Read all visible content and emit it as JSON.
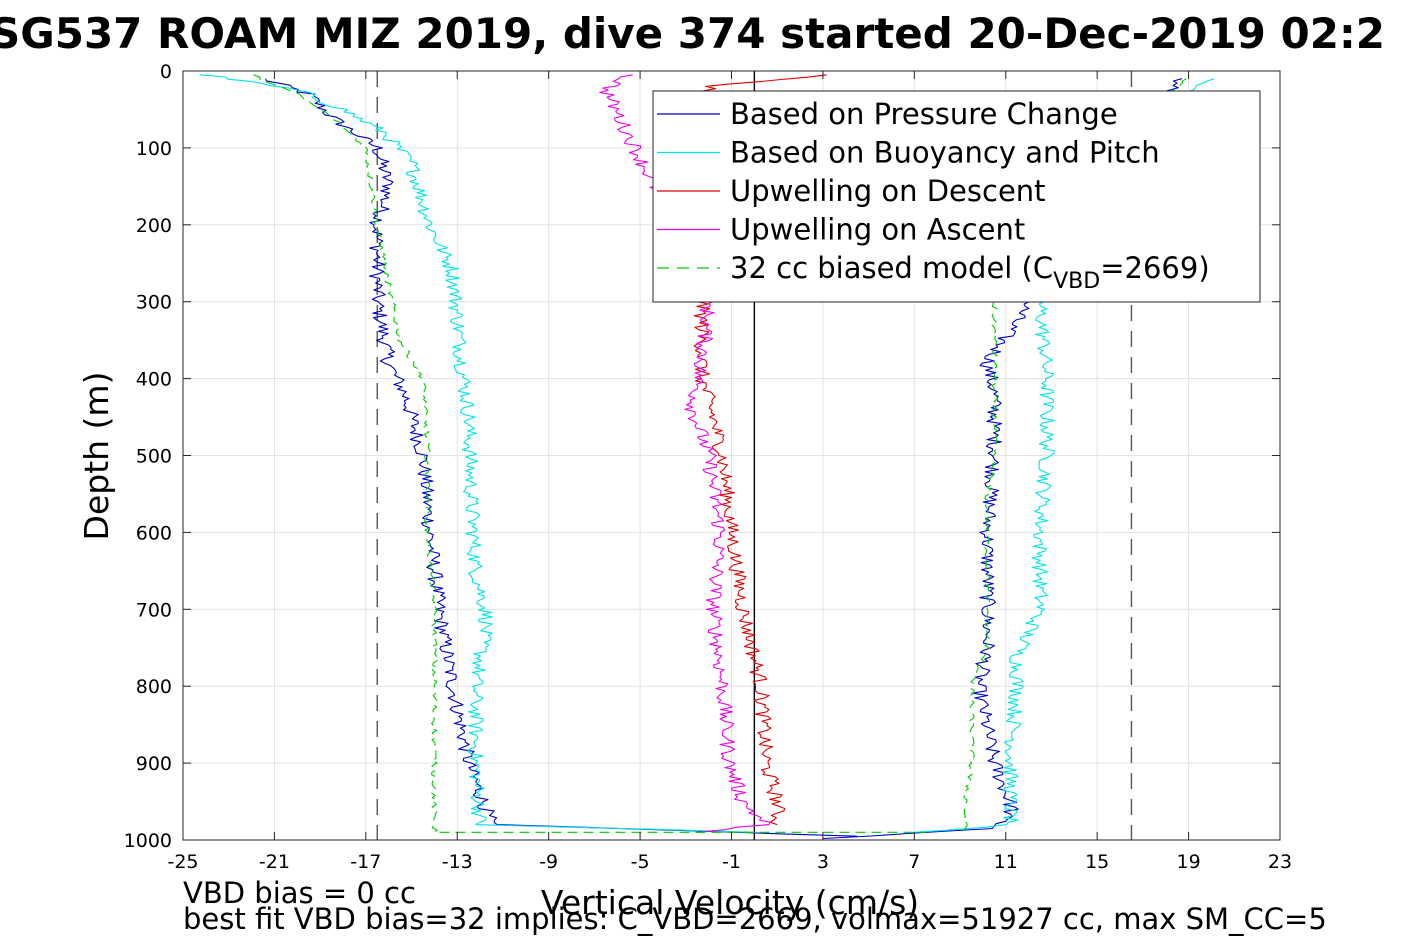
{
  "chart_data": {
    "type": "line",
    "title": "SG537 ROAM MIZ 2019, dive 374 started 20-Dec-2019 02:2",
    "xlabel": "Vertical Velocity (cm/s)",
    "ylabel": "Depth (m)",
    "xlim": [
      -25,
      23
    ],
    "ylim": [
      1000,
      0
    ],
    "y_reversed": true,
    "grid": true,
    "x_ticks": [
      -25,
      -21,
      -17,
      -13,
      -9,
      -5,
      -1,
      3,
      7,
      11,
      15,
      19,
      23
    ],
    "y_ticks": [
      0,
      100,
      200,
      300,
      400,
      500,
      600,
      700,
      800,
      900,
      1000
    ],
    "legend_position": "top-right",
    "reference_lines": [
      {
        "x": -16.5,
        "style": "dashed",
        "color": "#555555"
      },
      {
        "x": 16.5,
        "style": "dashed",
        "color": "#555555"
      },
      {
        "x": 0,
        "style": "solid",
        "color": "#000000"
      }
    ],
    "series": [
      {
        "name": "Based on Pressure Change",
        "color": "#0000cc",
        "style": "solid",
        "descent": [
          [
            -21.5,
            10
          ],
          [
            -19.5,
            30
          ],
          [
            -18.5,
            60
          ],
          [
            -16.5,
            100
          ],
          [
            -16,
            150
          ],
          [
            -16.5,
            200
          ],
          [
            -16.5,
            300
          ],
          [
            -16,
            380
          ],
          [
            -15.3,
            420
          ],
          [
            -14.5,
            500
          ],
          [
            -14.2,
            600
          ],
          [
            -13.8,
            700
          ],
          [
            -13.2,
            800
          ],
          [
            -12.5,
            900
          ],
          [
            -11.5,
            980
          ],
          [
            4.5,
            995
          ]
        ],
        "ascent": [
          [
            18.5,
            10
          ],
          [
            17.5,
            60
          ],
          [
            12,
            300
          ],
          [
            10.2,
            380
          ],
          [
            10.5,
            420
          ],
          [
            10.5,
            500
          ],
          [
            10.2,
            600
          ],
          [
            10.2,
            700
          ],
          [
            10.2,
            750
          ],
          [
            9.8,
            800
          ],
          [
            10.5,
            900
          ],
          [
            11.3,
            960
          ],
          [
            10.5,
            985
          ],
          [
            3,
            998
          ]
        ]
      },
      {
        "name": "Based on Buoyancy and Pitch",
        "color": "#00e5e5",
        "style": "solid",
        "descent": [
          [
            -24,
            5
          ],
          [
            -20,
            25
          ],
          [
            -18,
            50
          ],
          [
            -16.2,
            80
          ],
          [
            -15,
            120
          ],
          [
            -14.2,
            200
          ],
          [
            -13.2,
            260
          ],
          [
            -12.8,
            380
          ],
          [
            -12.5,
            450
          ],
          [
            -12.4,
            550
          ],
          [
            -12.2,
            650
          ],
          [
            -11.7,
            710
          ],
          [
            -12.2,
            800
          ],
          [
            -12.2,
            900
          ],
          [
            -12,
            980
          ],
          [
            0,
            990
          ]
        ],
        "ascent": [
          [
            20,
            10
          ],
          [
            18,
            40
          ],
          [
            12.5,
            300
          ],
          [
            12.8,
            400
          ],
          [
            12.8,
            500
          ],
          [
            12.5,
            600
          ],
          [
            12.5,
            700
          ],
          [
            11.5,
            760
          ],
          [
            11.5,
            800
          ],
          [
            11.2,
            900
          ],
          [
            11.2,
            980
          ],
          [
            7,
            990
          ]
        ]
      },
      {
        "name": "Upwelling on Descent",
        "color": "#e00000",
        "style": "solid",
        "descent": [
          [
            3,
            5
          ],
          [
            -2,
            20
          ],
          [
            -2.3,
            300
          ],
          [
            -2.3,
            400
          ],
          [
            -1.8,
            450
          ],
          [
            -1.4,
            500
          ],
          [
            -1,
            600
          ],
          [
            -0.5,
            700
          ],
          [
            0.3,
            800
          ],
          [
            0.5,
            900
          ],
          [
            1,
            950
          ],
          [
            1,
            980
          ]
        ]
      },
      {
        "name": "Upwelling on Ascent",
        "color": "#ee00ee",
        "style": "solid",
        "descent": [
          [
            -5.5,
            5
          ],
          [
            -6.5,
            25
          ],
          [
            -2,
            290
          ],
          [
            -2.2,
            360
          ],
          [
            -2.7,
            440
          ],
          [
            -2,
            500
          ],
          [
            -1.5,
            600
          ],
          [
            -1.8,
            700
          ],
          [
            -1.4,
            800
          ],
          [
            -1.1,
            900
          ],
          [
            -0.5,
            950
          ],
          [
            0.5,
            980
          ],
          [
            -2.5,
            990
          ]
        ]
      },
      {
        "name": "32 cc biased model (C_VBD=2669)",
        "color": "#00cc00",
        "style": "dashed",
        "descent": [
          [
            -22,
            5
          ],
          [
            -20,
            30
          ],
          [
            -18.5,
            60
          ],
          [
            -17,
            100
          ],
          [
            -16.5,
            200
          ],
          [
            -16,
            280
          ],
          [
            -15.5,
            350
          ],
          [
            -14.5,
            400
          ],
          [
            -14.3,
            500
          ],
          [
            -14.3,
            600
          ],
          [
            -14,
            700
          ],
          [
            -14,
            800
          ],
          [
            -14,
            900
          ],
          [
            -14,
            990
          ],
          [
            7.5,
            990
          ]
        ],
        "ascent": [
          [
            19,
            10
          ],
          [
            17,
            50
          ],
          [
            10.5,
            300
          ],
          [
            10.5,
            400
          ],
          [
            10.5,
            450
          ],
          [
            10.5,
            500
          ],
          [
            10.2,
            550
          ],
          [
            10.2,
            650
          ],
          [
            10.2,
            750
          ],
          [
            9.5,
            800
          ],
          [
            9.5,
            900
          ],
          [
            9.2,
            960
          ],
          [
            9.2,
            990
          ]
        ]
      }
    ]
  },
  "legend": {
    "entries": [
      {
        "label": "Based on Pressure Change",
        "color": "#0000cc",
        "dash": ""
      },
      {
        "label": "Based on Buoyancy and Pitch",
        "color": "#00e5e5",
        "dash": ""
      },
      {
        "label": "Upwelling on Descent",
        "color": "#e00000",
        "dash": ""
      },
      {
        "label": "Upwelling on Ascent",
        "color": "#ee00ee",
        "dash": ""
      },
      {
        "label": "32 cc biased model (C",
        "sub": "VBD",
        "suffix": "=2669)",
        "color": "#00cc00",
        "dash": "12,8"
      }
    ]
  },
  "notes": {
    "bias": "VBD bias = 0 cc",
    "best_fit": "best fit VBD bias=32 implies: C_VBD=2669, volmax=51927 cc, max SM_CC=5"
  }
}
